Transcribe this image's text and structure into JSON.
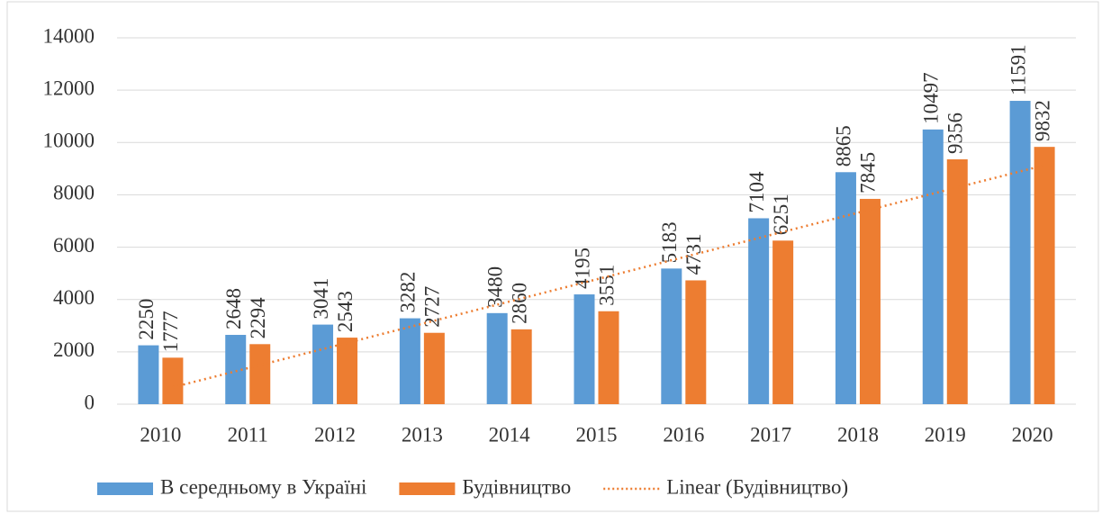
{
  "chart_data": {
    "type": "bar",
    "categories": [
      "2010",
      "2011",
      "2012",
      "2013",
      "2014",
      "2015",
      "2016",
      "2017",
      "2018",
      "2019",
      "2020"
    ],
    "series": [
      {
        "name": "В середньому в Україні",
        "color": "#5b9bd5",
        "values": [
          2250,
          2648,
          3041,
          3282,
          3480,
          4195,
          5183,
          7104,
          8865,
          10497,
          11591
        ]
      },
      {
        "name": "Будівництво",
        "color": "#ed7d31",
        "values": [
          1777,
          2294,
          2543,
          2727,
          2860,
          3551,
          4731,
          6251,
          7845,
          9356,
          9832
        ]
      }
    ],
    "trendline": {
      "name": "Linear (Будівництво)",
      "type": "linear",
      "series": 1,
      "color": "#ed7d31"
    },
    "ylim": [
      0,
      14000
    ],
    "yticks": [
      0,
      2000,
      4000,
      6000,
      8000,
      10000,
      12000,
      14000
    ],
    "grid": true,
    "legend": "bottom"
  }
}
